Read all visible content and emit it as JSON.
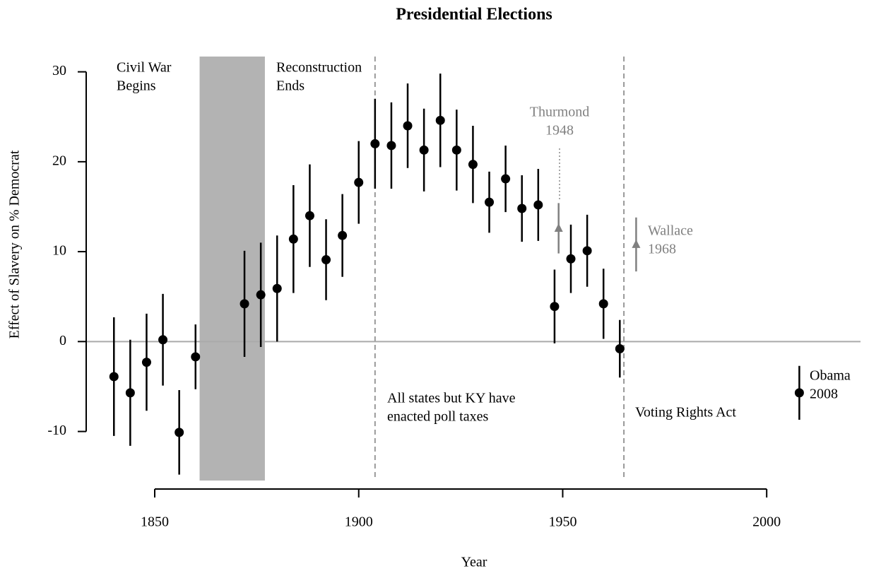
{
  "chart_data": {
    "type": "scatter",
    "title": "Presidential Elections",
    "xlabel": "Year",
    "ylabel": "Effect of Slavery on % Democrat",
    "xlim": [
      1833.2,
      2023
    ],
    "ylim": [
      -16.4,
      31.7
    ],
    "xticks": [
      1850,
      1900,
      1950,
      2000
    ],
    "yticks": [
      30,
      20,
      10,
      0,
      -10
    ],
    "series": [
      {
        "color": "#000000",
        "marker": "circle",
        "x": [
          1840,
          1844,
          1848,
          1852,
          1856,
          1860,
          1872,
          1876,
          1880,
          1884,
          1888,
          1892,
          1896,
          1900,
          1904,
          1908,
          1912,
          1916,
          1920,
          1924,
          1928,
          1932,
          1936,
          1940,
          1944,
          1948,
          1952,
          1956,
          1960,
          1964,
          2008
        ],
        "values": [
          -3.9,
          -5.7,
          -2.3,
          0.2,
          -10.1,
          -1.7,
          4.2,
          5.2,
          5.9,
          11.4,
          14.0,
          9.1,
          11.8,
          17.7,
          22.0,
          21.8,
          24.0,
          21.3,
          24.6,
          21.3,
          19.7,
          15.5,
          18.1,
          14.8,
          15.2,
          3.9,
          9.2,
          10.1,
          4.2,
          -0.8,
          -5.7
        ],
        "errors": [
          6.6,
          5.9,
          5.4,
          5.1,
          4.7,
          3.6,
          5.9,
          5.8,
          5.9,
          6.0,
          5.7,
          4.5,
          4.6,
          4.6,
          5.0,
          4.8,
          4.7,
          4.6,
          5.2,
          4.5,
          4.3,
          3.4,
          3.7,
          3.7,
          4.0,
          4.1,
          3.8,
          4.0,
          3.9,
          3.2,
          3.0
        ]
      },
      {
        "color": "#808080",
        "marker": "triangle",
        "x": [
          1949,
          1968
        ],
        "values": [
          12.6,
          10.8
        ],
        "errors": [
          2.8,
          3.0
        ]
      }
    ],
    "shaded_region": [
      1861,
      1877
    ],
    "shade_color": "#b3b3b3",
    "vlines": [
      1904,
      1965
    ],
    "annotations": [
      {
        "lines": [
          "Civil War",
          "Begins"
        ]
      },
      {
        "lines": [
          "Reconstruction",
          "Ends"
        ]
      },
      {
        "lines": [
          "Thurmond",
          "1948"
        ],
        "color": "#808080"
      },
      {
        "lines": [
          "Wallace",
          "1968"
        ],
        "color": "#808080"
      },
      {
        "lines": [
          "All states but KY have",
          "enacted poll taxes"
        ]
      },
      {
        "lines": [
          "Voting Rights Act"
        ]
      },
      {
        "lines": [
          "Obama",
          "2008"
        ]
      }
    ]
  }
}
